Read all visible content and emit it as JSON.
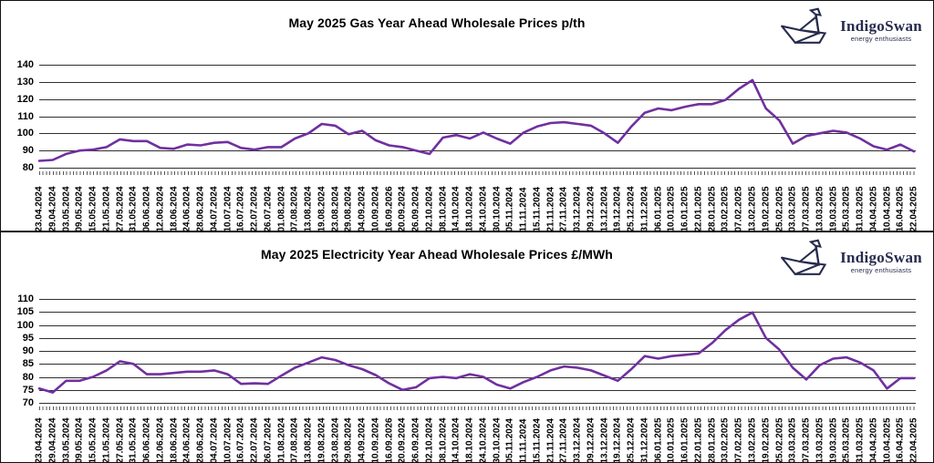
{
  "logo": {
    "name": "IndigoSwan",
    "tagline": "energy enthusiasts",
    "color": "#272b4d"
  },
  "chart_data": [
    {
      "type": "line",
      "title": "May 2025 Gas Year Ahead Wholesale Prices p/th",
      "unit": "p/th",
      "line_color": "#7030A0",
      "grid": true,
      "legend": "none",
      "ylim": [
        80,
        140
      ],
      "yticks": [
        140,
        130,
        120,
        110,
        100,
        90,
        80
      ],
      "categories": [
        "23.04.2024",
        "29.04.2024",
        "03.05.2024",
        "09.05.2024",
        "15.05.2024",
        "21.05.2024",
        "27.05.2024",
        "31.05.2024",
        "06.06.2024",
        "12.06.2024",
        "18.06.2024",
        "24.06.2024",
        "28.06.2024",
        "04.07.2024",
        "10.07.2024",
        "16.07.2024",
        "22.07.2024",
        "26.07.2024",
        "01.08.2024",
        "07.08.2024",
        "13.08.2024",
        "19.08.2024",
        "23.08.2024",
        "29.08.2024",
        "04.09.2024",
        "10.09.2024",
        "16.09.2026",
        "20.09.2024",
        "26.09.2024",
        "02.10.2024",
        "08.10.2024",
        "14.10.2024",
        "18.10.2024",
        "24.10.2024",
        "30.10.2024",
        "05.11.2024",
        "11.11.2024",
        "15.11.2024",
        "21.11.2024",
        "27.11.2024",
        "03.12.2024",
        "09.12.2024",
        "13.12.2024",
        "19.12.2024",
        "25.12.2024",
        "31.12.2024",
        "06.01.2025",
        "10.01.2025",
        "16.01.2025",
        "22.01.2025",
        "28.01.2025",
        "03.02.2025",
        "07.02.2025",
        "13.02.2025",
        "19.02.2025",
        "25.02.2025",
        "03.03.2025",
        "07.03.2025",
        "13.03.2025",
        "19.03.2025",
        "25.03.2025",
        "31.03.2025",
        "04.04.2025",
        "10.04.2025",
        "16.04.2025",
        "22.04.2025"
      ],
      "values": [
        84,
        84.5,
        88,
        90,
        90.5,
        92,
        96.5,
        95.5,
        95.5,
        91.5,
        91,
        93.5,
        93,
        94.5,
        95,
        91.5,
        90.5,
        92,
        92,
        97,
        100,
        105.5,
        104.5,
        99.5,
        101.5,
        96,
        93,
        92,
        90,
        88,
        97.5,
        99,
        97,
        100.5,
        97,
        94,
        100.5,
        104,
        106,
        106.5,
        105.5,
        104.5,
        100,
        94.5,
        104,
        112,
        114.5,
        113.5,
        115.5,
        117,
        117,
        119.5,
        126,
        131,
        114.5,
        107.5,
        94,
        98.5,
        100,
        101.5,
        100.5,
        97,
        92.5,
        90.5,
        93.5,
        89.5
      ]
    },
    {
      "type": "line",
      "title": "May 2025 Electricity Year Ahead Wholesale Prices £/MWh",
      "unit": "£/MWh",
      "line_color": "#7030A0",
      "grid": true,
      "legend": "none",
      "ylim": [
        70,
        110
      ],
      "yticks": [
        110,
        105,
        100,
        95,
        90,
        85,
        80,
        75,
        70
      ],
      "categories": [
        "23.04.2024",
        "29.04.2024",
        "03.05.2024",
        "09.05.2024",
        "15.05.2024",
        "21.05.2024",
        "27.05.2024",
        "31.05.2024",
        "06.06.2024",
        "12.06.2024",
        "18.06.2024",
        "24.06.2024",
        "28.06.2024",
        "04.07.2024",
        "10.07.2024",
        "16.07.2024",
        "22.07.2024",
        "26.07.2024",
        "01.08.2024",
        "07.08.2024",
        "13.08.2024",
        "19.08.2024",
        "23.08.2024",
        "29.08.2024",
        "04.09.2024",
        "10.09.2024",
        "16.09.2026",
        "20.09.2024",
        "26.09.2024",
        "02.10.2024",
        "08.10.2024",
        "14.10.2024",
        "18.10.2024",
        "24.10.2024",
        "30.10.2024",
        "05.11.2024",
        "11.11.2024",
        "15.11.2024",
        "21.11.2024",
        "27.11.2024",
        "03.12.2024",
        "09.12.2024",
        "13.12.2024",
        "19.12.2024",
        "25.12.2024",
        "31.12.2024",
        "06.01.2025",
        "10.01.2025",
        "16.01.2025",
        "22.01.2025",
        "28.01.2025",
        "03.02.2025",
        "07.02.2025",
        "13.02.2025",
        "19.02.2025",
        "25.02.2025",
        "03.03.2025",
        "07.03.2025",
        "13.03.2025",
        "19.03.2025",
        "25.03.2025",
        "31.03.2025",
        "04.04.2025",
        "10.04.2025",
        "16.04.2025",
        "22.04.2025"
      ],
      "values": [
        75.5,
        74,
        78.5,
        78.5,
        80,
        82.5,
        86,
        85,
        81,
        81,
        81.5,
        82,
        82,
        82.5,
        81,
        77.3,
        77.5,
        77.3,
        80.5,
        83.5,
        85.5,
        87.5,
        86.5,
        84.5,
        83,
        80.7,
        77.5,
        75,
        76,
        79.5,
        80,
        79.5,
        81,
        80,
        77,
        75.5,
        78,
        80,
        82.5,
        84,
        83.5,
        82.5,
        80.5,
        78.5,
        83,
        88,
        87,
        88,
        88.5,
        89,
        93,
        98,
        102,
        104.8,
        95,
        90.5,
        83.5,
        79,
        84.5,
        87,
        87.5,
        85.5,
        82.5,
        75.5,
        79.5,
        79.5
      ]
    }
  ]
}
